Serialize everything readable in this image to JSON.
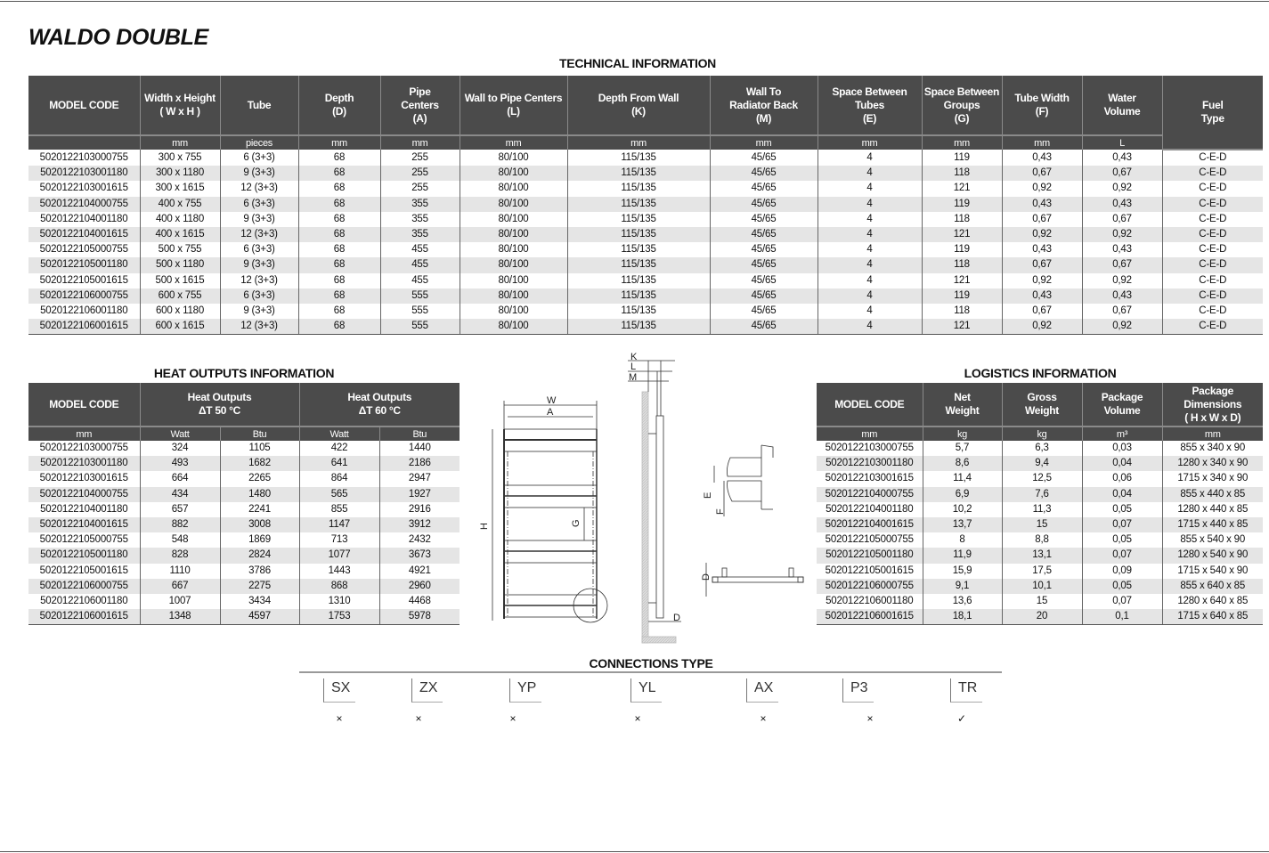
{
  "title": "WALDO DOUBLE",
  "technical": {
    "title": "TECHNICAL INFORMATION",
    "headers": [
      "MODEL CODE",
      "Width x Height\n( W x H )",
      "Tube",
      "Depth\n(D)",
      "Pipe\nCenters\n(A)",
      "Wall to Pipe Centers\n(L)",
      "Depth From Wall\n(K)",
      "Wall To\nRadiator Back\n(M)",
      "Space Between\nTubes\n(E)",
      "Space Between\nGroups\n(G)",
      "Tube Width\n(F)",
      "Water\nVolume",
      "Fuel\nType"
    ],
    "units": [
      "",
      "mm",
      "pieces",
      "mm",
      "mm",
      "mm",
      "mm",
      "mm",
      "mm",
      "mm",
      "mm",
      "L"
    ],
    "rows": [
      [
        "5020122103000755",
        "300 x 755",
        "6 (3+3)",
        "68",
        "255",
        "80/100",
        "115/135",
        "45/65",
        "4",
        "119",
        "0,43",
        "0,43",
        "C-E-D"
      ],
      [
        "5020122103001180",
        "300 x 1180",
        "9 (3+3)",
        "68",
        "255",
        "80/100",
        "115/135",
        "45/65",
        "4",
        "118",
        "0,67",
        "0,67",
        "C-E-D"
      ],
      [
        "5020122103001615",
        "300 x 1615",
        "12 (3+3)",
        "68",
        "255",
        "80/100",
        "115/135",
        "45/65",
        "4",
        "121",
        "0,92",
        "0,92",
        "C-E-D"
      ],
      [
        "5020122104000755",
        "400 x 755",
        "6 (3+3)",
        "68",
        "355",
        "80/100",
        "115/135",
        "45/65",
        "4",
        "119",
        "0,43",
        "0,43",
        "C-E-D"
      ],
      [
        "5020122104001180",
        "400 x 1180",
        "9 (3+3)",
        "68",
        "355",
        "80/100",
        "115/135",
        "45/65",
        "4",
        "118",
        "0,67",
        "0,67",
        "C-E-D"
      ],
      [
        "5020122104001615",
        "400 x 1615",
        "12 (3+3)",
        "68",
        "355",
        "80/100",
        "115/135",
        "45/65",
        "4",
        "121",
        "0,92",
        "0,92",
        "C-E-D"
      ],
      [
        "5020122105000755",
        "500 x 755",
        "6 (3+3)",
        "68",
        "455",
        "80/100",
        "115/135",
        "45/65",
        "4",
        "119",
        "0,43",
        "0,43",
        "C-E-D"
      ],
      [
        "5020122105001180",
        "500 x 1180",
        "9 (3+3)",
        "68",
        "455",
        "80/100",
        "115/135",
        "45/65",
        "4",
        "118",
        "0,67",
        "0,67",
        "C-E-D"
      ],
      [
        "5020122105001615",
        "500 x 1615",
        "12 (3+3)",
        "68",
        "455",
        "80/100",
        "115/135",
        "45/65",
        "4",
        "121",
        "0,92",
        "0,92",
        "C-E-D"
      ],
      [
        "5020122106000755",
        "600 x 755",
        "6 (3+3)",
        "68",
        "555",
        "80/100",
        "115/135",
        "45/65",
        "4",
        "119",
        "0,43",
        "0,43",
        "C-E-D"
      ],
      [
        "5020122106001180",
        "600 x 1180",
        "9 (3+3)",
        "68",
        "555",
        "80/100",
        "115/135",
        "45/65",
        "4",
        "118",
        "0,67",
        "0,67",
        "C-E-D"
      ],
      [
        "5020122106001615",
        "600 x 1615",
        "12 (3+3)",
        "68",
        "555",
        "80/100",
        "115/135",
        "45/65",
        "4",
        "121",
        "0,92",
        "0,92",
        "C-E-D"
      ]
    ]
  },
  "heat": {
    "title": "HEAT OUTPUTS INFORMATION",
    "headers": [
      "MODEL CODE",
      "Heat Outputs\nΔT  50 °C",
      "Heat Outputs\nΔT  60 °C"
    ],
    "units": [
      "mm",
      "Watt",
      "Btu",
      "Watt",
      "Btu"
    ],
    "rows": [
      [
        "5020122103000755",
        "324",
        "1105",
        "422",
        "1440"
      ],
      [
        "5020122103001180",
        "493",
        "1682",
        "641",
        "2186"
      ],
      [
        "5020122103001615",
        "664",
        "2265",
        "864",
        "2947"
      ],
      [
        "5020122104000755",
        "434",
        "1480",
        "565",
        "1927"
      ],
      [
        "5020122104001180",
        "657",
        "2241",
        "855",
        "2916"
      ],
      [
        "5020122104001615",
        "882",
        "3008",
        "1147",
        "3912"
      ],
      [
        "5020122105000755",
        "548",
        "1869",
        "713",
        "2432"
      ],
      [
        "5020122105001180",
        "828",
        "2824",
        "1077",
        "3673"
      ],
      [
        "5020122105001615",
        "1110",
        "3786",
        "1443",
        "4921"
      ],
      [
        "5020122106000755",
        "667",
        "2275",
        "868",
        "2960"
      ],
      [
        "5020122106001180",
        "1007",
        "3434",
        "1310",
        "4468"
      ],
      [
        "5020122106001615",
        "1348",
        "4597",
        "1753",
        "5978"
      ]
    ]
  },
  "logistics": {
    "title": "LOGISTICS INFORMATION",
    "headers": [
      "MODEL CODE",
      "Net\nWeight",
      "Gross\nWeight",
      "Package\nVolume",
      "Package\nDimensions\n( H x W x D)"
    ],
    "units": [
      "mm",
      "kg",
      "kg",
      "m³",
      "mm"
    ],
    "rows": [
      [
        "5020122103000755",
        "5,7",
        "6,3",
        "0,03",
        "855 x 340 x 90"
      ],
      [
        "5020122103001180",
        "8,6",
        "9,4",
        "0,04",
        "1280 x 340 x 90"
      ],
      [
        "5020122103001615",
        "11,4",
        "12,5",
        "0,06",
        "1715 x 340 x 90"
      ],
      [
        "5020122104000755",
        "6,9",
        "7,6",
        "0,04",
        "855 x 440 x 85"
      ],
      [
        "5020122104001180",
        "10,2",
        "11,3",
        "0,05",
        "1280 x 440 x 85"
      ],
      [
        "5020122104001615",
        "13,7",
        "15",
        "0,07",
        "1715 x 440 x 85"
      ],
      [
        "5020122105000755",
        "8",
        "8,8",
        "0,05",
        "855 x 540 x 90"
      ],
      [
        "5020122105001180",
        "11,9",
        "13,1",
        "0,07",
        "1280 x 540 x 90"
      ],
      [
        "5020122105001615",
        "15,9",
        "17,5",
        "0,09",
        "1715 x 540 x 90"
      ],
      [
        "5020122106000755",
        "9,1",
        "10,1",
        "0,05",
        "855 x 640 x 85"
      ],
      [
        "5020122106001180",
        "13,6",
        "15",
        "0,07",
        "1280 x 640 x 85"
      ],
      [
        "5020122106001615",
        "18,1",
        "20",
        "0,1",
        "1715 x 640 x 85"
      ]
    ]
  },
  "diagram": {
    "labels": {
      "W": "W",
      "A": "A",
      "H": "H",
      "G": "G",
      "K": "K",
      "L": "L",
      "M": "M",
      "D": "D",
      "E": "E",
      "F": "F",
      "D2": "D"
    }
  },
  "connections": {
    "title": "CONNECTIONS TYPE",
    "items": [
      {
        "label": "SX",
        "mark": "×",
        "available": false
      },
      {
        "label": "ZX",
        "mark": "×",
        "available": false
      },
      {
        "label": "YP",
        "mark": "×",
        "available": false
      },
      {
        "label": "YL",
        "mark": "×",
        "available": false
      },
      {
        "label": "AX",
        "mark": "×",
        "available": false
      },
      {
        "label": "P3",
        "mark": "×",
        "available": false
      },
      {
        "label": "TR",
        "mark": "✓",
        "available": true
      }
    ]
  },
  "colors": {
    "header_bg": "#4b4b4b",
    "row_alt": "#e5e5e5"
  }
}
